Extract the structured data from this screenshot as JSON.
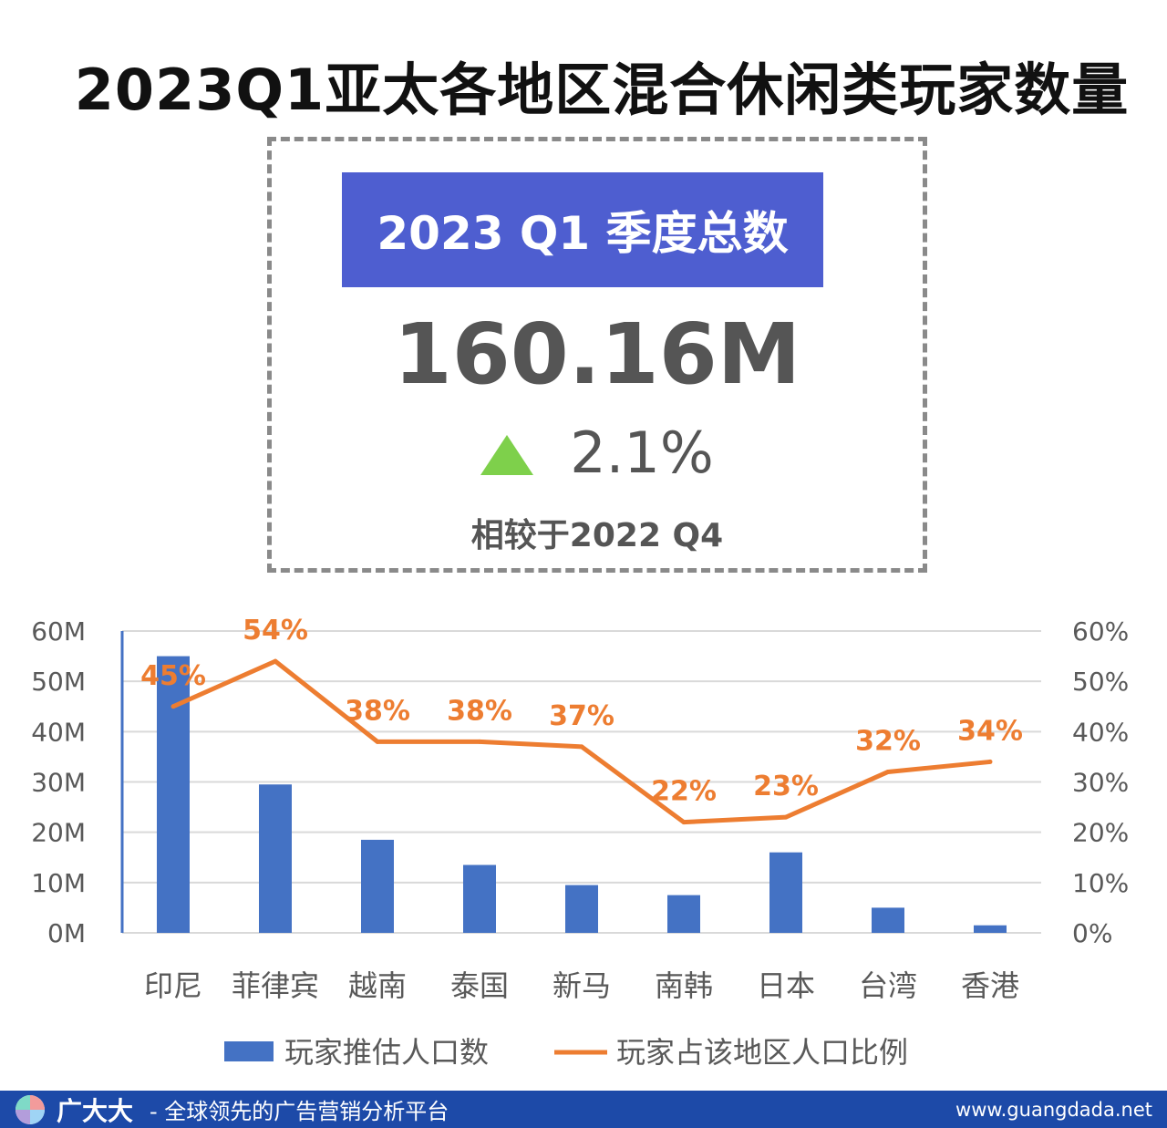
{
  "title": "2023Q1亚太各地区混合休闲类玩家数量",
  "summary": {
    "header": "2023 Q1 季度总数",
    "total": "160.16M",
    "change": "2.1%",
    "compare_note": "相较于2022 Q4",
    "up_color": "#7ed04b",
    "header_color": "#4e5ed0"
  },
  "chart_data": {
    "type": "bar",
    "categories": [
      "印尼",
      "菲律宾",
      "越南",
      "泰国",
      "新马",
      "南韩",
      "日本",
      "台湾",
      "香港"
    ],
    "series": [
      {
        "name": "玩家推估人口数",
        "type": "bar",
        "axis": "left",
        "color": "#4472c4",
        "values": [
          55,
          29.5,
          18.5,
          13.5,
          9.5,
          7.5,
          16,
          5,
          1.5
        ]
      },
      {
        "name": "玩家占该地区人口比例",
        "type": "line",
        "axis": "right",
        "color": "#ed7d31",
        "values": [
          45,
          54,
          38,
          38,
          37,
          22,
          23,
          32,
          34
        ],
        "labels": [
          "45%",
          "54%",
          "38%",
          "38%",
          "37%",
          "22%",
          "23%",
          "32%",
          "34%"
        ]
      }
    ],
    "ylim": [
      0,
      60
    ],
    "y2lim": [
      0,
      60
    ],
    "yticks": [
      "0M",
      "10M",
      "20M",
      "30M",
      "40M",
      "50M",
      "60M"
    ],
    "y2ticks": [
      "0%",
      "10%",
      "20%",
      "30%",
      "40%",
      "50%",
      "60%"
    ],
    "grid": true,
    "legend": "bottom"
  },
  "footer": {
    "brand": "广大大",
    "slogan": "- 全球领先的广告营销分析平台",
    "url": "www.guangdada.net"
  }
}
